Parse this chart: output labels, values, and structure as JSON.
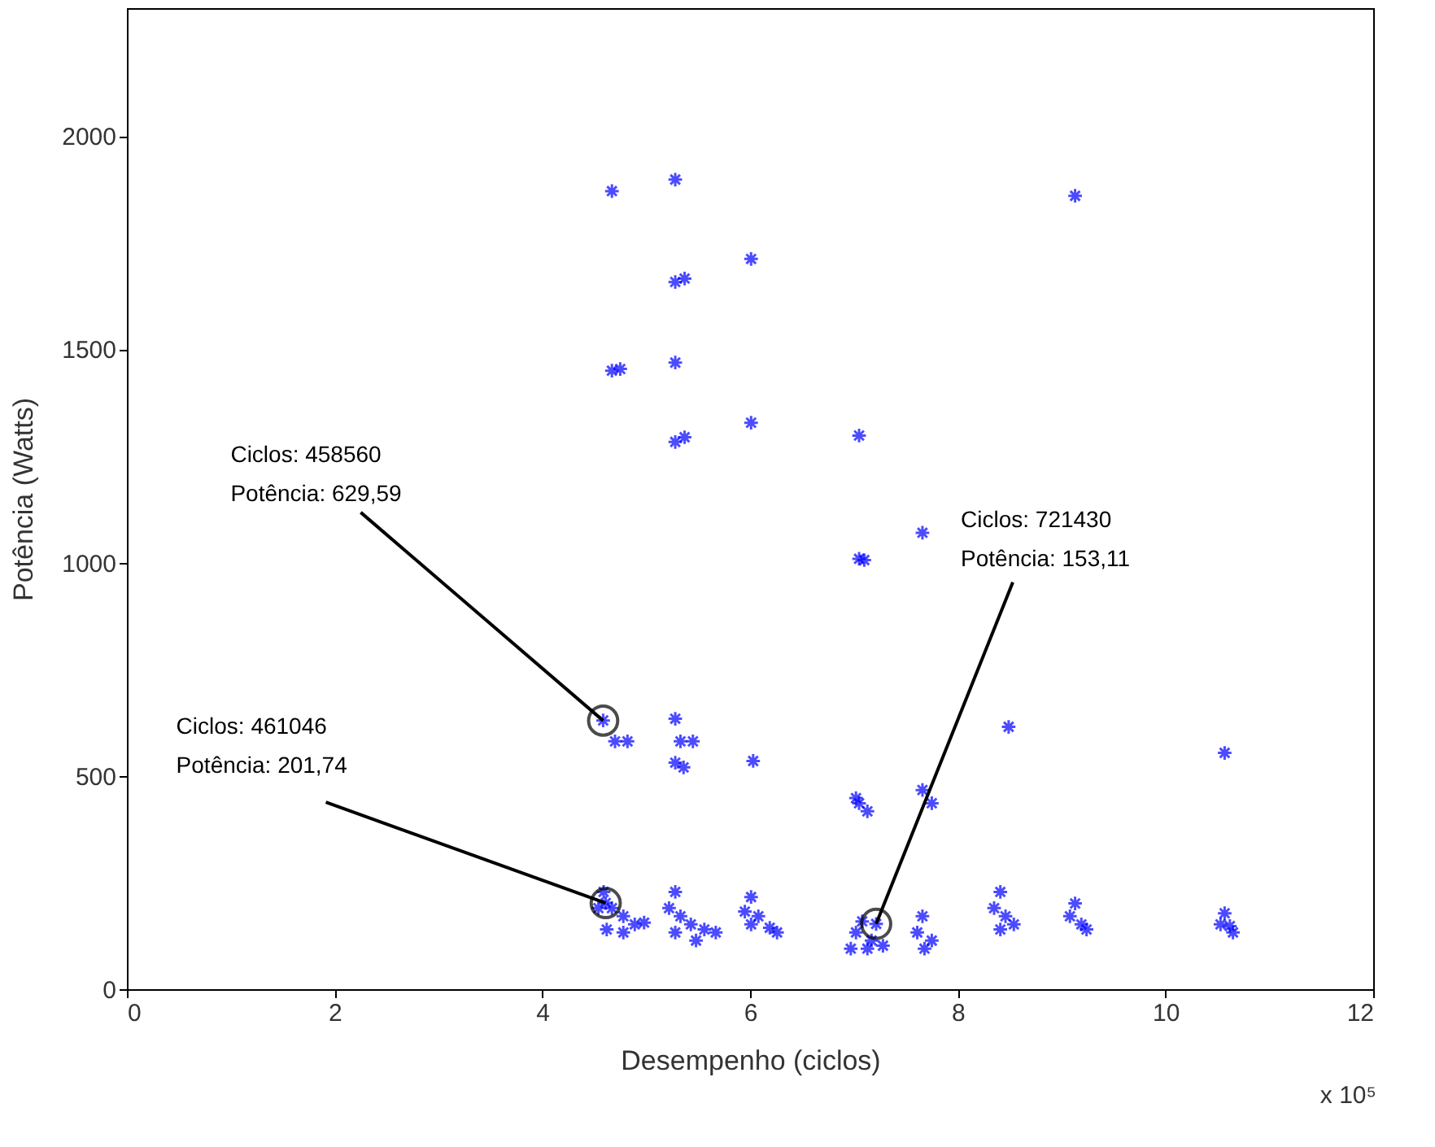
{
  "chart_data": {
    "type": "scatter",
    "xlabel": "Desempenho (ciclos)",
    "ylabel": "Potência (Watts)",
    "xlim": [
      0,
      12
    ],
    "ylim": [
      0,
      2300
    ],
    "xticks": [
      0,
      2,
      4,
      6,
      8,
      10,
      12
    ],
    "yticks": [
      0,
      500,
      1000,
      1500,
      2000
    ],
    "grid": false,
    "marker": "cross",
    "series": [
      {
        "color": "#0000ff",
        "x": [
          4.67,
          5.28,
          6.01,
          9.13,
          5.28,
          5.37,
          4.67,
          4.75,
          5.28,
          5.28,
          5.37,
          6.01,
          7.05,
          7.66,
          7.05,
          7.1,
          8.49,
          10.57,
          5.28,
          4.5856,
          4.7,
          4.82,
          5.33,
          5.45,
          5.36,
          5.28,
          6.03,
          7.05,
          7.13,
          7.02,
          7.66,
          7.75,
          4.59,
          4.54,
          4.67,
          4.78,
          4.89,
          4.98,
          4.62,
          4.78,
          4.61046,
          5.28,
          5.22,
          5.33,
          5.43,
          5.56,
          5.67,
          5.28,
          5.48,
          6.01,
          5.95,
          6.08,
          6.19,
          6.26,
          6.01,
          7.08,
          7.02,
          7.17,
          7.28,
          6.97,
          7.13,
          7.2143,
          7.66,
          7.61,
          7.75,
          7.68,
          8.41,
          8.35,
          8.46,
          8.54,
          8.41,
          9.13,
          9.08,
          9.19,
          9.24,
          10.57,
          10.53,
          10.65,
          10.62
        ],
        "values": [
          1871,
          1898,
          1712,
          1860,
          1658,
          1666,
          1450,
          1454,
          1469,
          1283,
          1294,
          1328,
          1298,
          1070,
          1009,
          1006,
          615,
          554,
          634,
          630,
          581,
          581,
          581,
          581,
          520,
          531,
          535,
          436,
          417,
          448,
          467,
          436,
          228,
          190,
          190,
          171,
          152,
          156,
          140,
          133,
          202,
          228,
          190,
          171,
          152,
          140,
          133,
          133,
          114,
          216,
          182,
          171,
          144,
          133,
          152,
          159,
          133,
          114,
          102,
          95,
          95,
          153,
          171,
          133,
          114,
          95,
          228,
          190,
          171,
          152,
          140,
          201,
          171,
          152,
          140,
          178,
          152,
          133,
          148
        ]
      }
    ],
    "annotations": [
      {
        "text": "Ciclos: 458560\nPotência: 629,59",
        "x": 4.5856,
        "y": 629.59
      },
      {
        "text": "Ciclos: 461046\nPotência: 201,74",
        "x": 4.61046,
        "y": 201.74
      },
      {
        "text": "Ciclos: 721430\nPotência: 153,11",
        "x": 7.2143,
        "y": 153.11
      },
      "x 10⁵"
    ]
  }
}
